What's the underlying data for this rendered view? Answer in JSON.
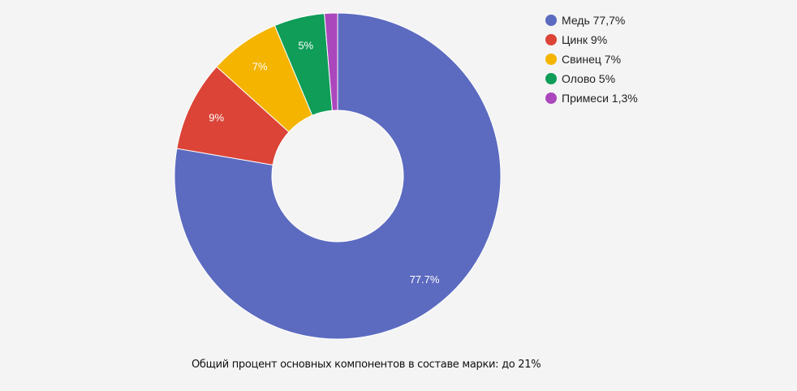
{
  "chart_data": {
    "type": "pie",
    "donut": true,
    "slices": [
      {
        "name": "Медь",
        "value": 77.7,
        "label": "77.7%",
        "legend": "Медь 77,7%",
        "color": "#5c6bc0"
      },
      {
        "name": "Цинк",
        "value": 9,
        "label": "9%",
        "legend": "Цинк 9%",
        "color": "#db4437"
      },
      {
        "name": "Свинец",
        "value": 7,
        "label": "7%",
        "legend": "Свинец 7%",
        "color": "#f4b400"
      },
      {
        "name": "Олово",
        "value": 5,
        "label": "5%",
        "legend": "Олово 5%",
        "color": "#0f9d58"
      },
      {
        "name": "Примеси",
        "value": 1.3,
        "label": "",
        "legend": "Примеси 1,3%",
        "color": "#ab47bc"
      }
    ],
    "legend_position": "top-right",
    "caption": "Общий процент основных компонентов в составе марки: до 21%"
  }
}
